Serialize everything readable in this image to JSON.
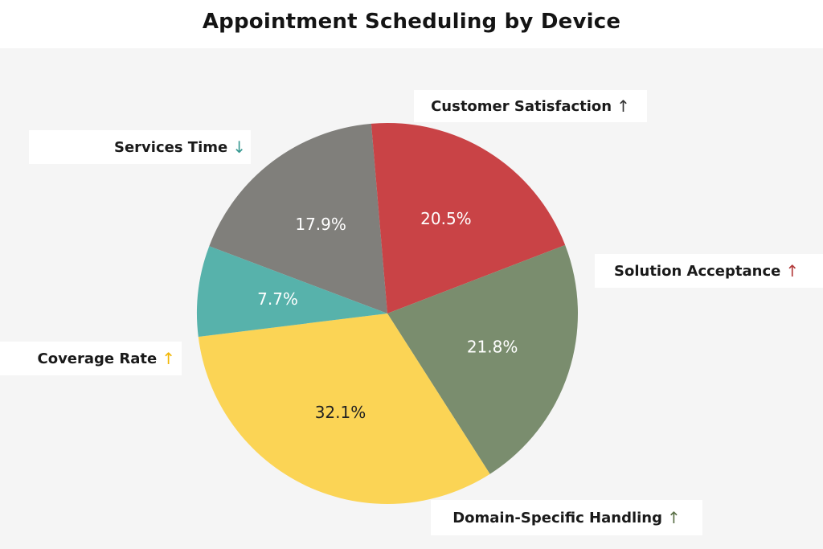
{
  "chart_data": {
    "type": "pie",
    "title": "Appointment Scheduling by Device",
    "slices": [
      {
        "label": "Customer Satisfaction",
        "value": 17.9,
        "value_label": "17.9%",
        "trend": "up",
        "arrow": "↑",
        "color": "#807f7b",
        "arrow_color": "#333333",
        "text_color": "#ffffff"
      },
      {
        "label": "Solution Acceptance",
        "value": 20.5,
        "value_label": "20.5%",
        "trend": "up",
        "arrow": "↑",
        "color": "#c94346",
        "arrow_color": "#b23a3a",
        "text_color": "#ffffff"
      },
      {
        "label": "Domain-Specific Handling",
        "value": 21.8,
        "value_label": "21.8%",
        "trend": "up",
        "arrow": "↑",
        "color": "#7a8d6e",
        "arrow_color": "#5a7046",
        "text_color": "#ffffff"
      },
      {
        "label": "Coverage Rate",
        "value": 32.1,
        "value_label": "32.1%",
        "trend": "up",
        "arrow": "↑",
        "color": "#fbd455",
        "arrow_color": "#f2b705",
        "text_color": "#222222"
      },
      {
        "label": "Services Time",
        "value": 7.7,
        "value_label": "7.7%",
        "trend": "down",
        "arrow": "↓",
        "color": "#57b2ab",
        "arrow_color": "#3a9a93",
        "text_color": "#ffffff"
      }
    ]
  }
}
